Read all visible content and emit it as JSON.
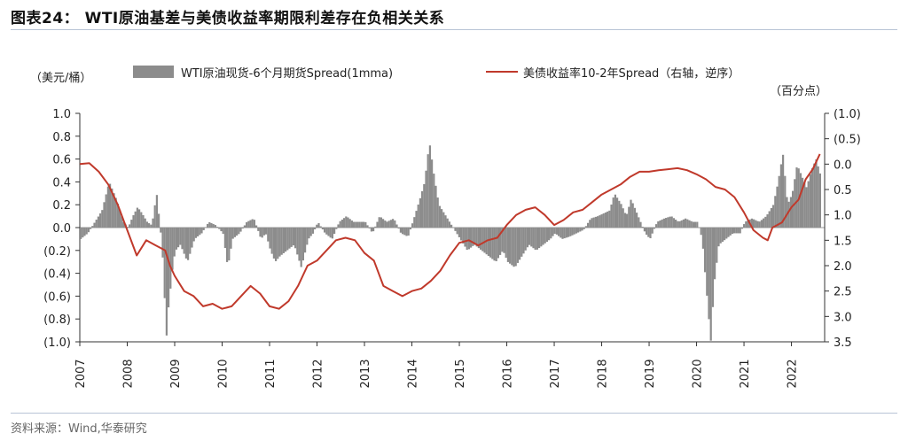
{
  "header": {
    "title": "图表24： WTI原油基差与美债收益率期限利差存在负相关关系"
  },
  "footer": {
    "source": "资料来源：Wind,华泰研究"
  },
  "chart_data": {
    "type": "bar+line",
    "left_unit": "（美元/桶）",
    "right_unit": "（百分点）",
    "left_axis": {
      "min": -1.0,
      "max": 1.0,
      "ticks": [
        1.0,
        0.8,
        0.6,
        0.4,
        0.2,
        0.0,
        -0.2,
        -0.4,
        -0.6,
        -0.8,
        -1.0
      ],
      "tick_labels": [
        "1.0",
        "0.8",
        "0.6",
        "0.4",
        "0.2",
        "0.0",
        "(0.2)",
        "(0.4)",
        "(0.6)",
        "(0.8)",
        "(1.0)"
      ]
    },
    "right_axis": {
      "min": -1.0,
      "max": 3.5,
      "reversed": true,
      "ticks": [
        -1.0,
        -0.5,
        0.0,
        0.5,
        1.0,
        1.5,
        2.0,
        2.5,
        3.0,
        3.5
      ],
      "tick_labels": [
        "(1.0)",
        "(0.5)",
        "0.0",
        "0.5",
        "1.0",
        "1.5",
        "2.0",
        "2.5",
        "3.0",
        "3.5"
      ]
    },
    "x_axis": {
      "min": 2007,
      "max": 2022.7,
      "ticks": [
        2007,
        2008,
        2009,
        2010,
        2011,
        2012,
        2013,
        2014,
        2015,
        2016,
        2017,
        2018,
        2019,
        2020,
        2021,
        2022
      ],
      "tick_labels": [
        "2007",
        "2008",
        "2009",
        "2010",
        "2011",
        "2012",
        "2013",
        "2014",
        "2015",
        "2016",
        "2017",
        "2018",
        "2019",
        "2020",
        "2021",
        "2022"
      ]
    },
    "colors": {
      "bar": "#8c8c8c",
      "line": "#c0392b"
    },
    "series": [
      {
        "name": "WTI原油现货-6个月期货Spread(1mma)",
        "kind": "bar",
        "axis": "left",
        "points": [
          [
            2007.0,
            -0.1
          ],
          [
            2007.15,
            -0.05
          ],
          [
            2007.3,
            0.05
          ],
          [
            2007.45,
            0.15
          ],
          [
            2007.6,
            0.4
          ],
          [
            2007.75,
            0.25
          ],
          [
            2007.9,
            0.05
          ],
          [
            2008.0,
            0.0
          ],
          [
            2008.1,
            0.1
          ],
          [
            2008.2,
            0.18
          ],
          [
            2008.3,
            0.12
          ],
          [
            2008.4,
            0.05
          ],
          [
            2008.5,
            0.02
          ],
          [
            2008.6,
            0.3
          ],
          [
            2008.7,
            -0.1
          ],
          [
            2008.75,
            -0.4
          ],
          [
            2008.8,
            -1.0
          ],
          [
            2008.85,
            -0.7
          ],
          [
            2008.95,
            -0.3
          ],
          [
            2009.0,
            -0.2
          ],
          [
            2009.1,
            -0.15
          ],
          [
            2009.25,
            -0.3
          ],
          [
            2009.4,
            -0.1
          ],
          [
            2009.55,
            -0.05
          ],
          [
            2009.7,
            0.05
          ],
          [
            2009.85,
            0.02
          ],
          [
            2010.0,
            -0.05
          ],
          [
            2010.1,
            -0.35
          ],
          [
            2010.2,
            -0.1
          ],
          [
            2010.35,
            -0.05
          ],
          [
            2010.5,
            0.05
          ],
          [
            2010.65,
            0.08
          ],
          [
            2010.8,
            -0.1
          ],
          [
            2010.9,
            -0.05
          ],
          [
            2011.0,
            -0.2
          ],
          [
            2011.1,
            -0.3
          ],
          [
            2011.2,
            -0.25
          ],
          [
            2011.35,
            -0.2
          ],
          [
            2011.5,
            -0.15
          ],
          [
            2011.65,
            -0.35
          ],
          [
            2011.8,
            -0.1
          ],
          [
            2011.9,
            -0.05
          ],
          [
            2012.0,
            0.05
          ],
          [
            2012.15,
            -0.05
          ],
          [
            2012.3,
            -0.1
          ],
          [
            2012.45,
            0.05
          ],
          [
            2012.6,
            0.1
          ],
          [
            2012.75,
            0.05
          ],
          [
            2012.9,
            0.05
          ],
          [
            2013.0,
            0.05
          ],
          [
            2013.15,
            -0.05
          ],
          [
            2013.3,
            0.1
          ],
          [
            2013.45,
            0.05
          ],
          [
            2013.6,
            0.08
          ],
          [
            2013.75,
            -0.05
          ],
          [
            2013.9,
            -0.08
          ],
          [
            2014.0,
            0.05
          ],
          [
            2014.15,
            0.25
          ],
          [
            2014.25,
            0.4
          ],
          [
            2014.35,
            0.75
          ],
          [
            2014.45,
            0.45
          ],
          [
            2014.55,
            0.2
          ],
          [
            2014.7,
            0.1
          ],
          [
            2014.85,
            0.0
          ],
          [
            2015.0,
            -0.1
          ],
          [
            2015.15,
            -0.2
          ],
          [
            2015.3,
            -0.15
          ],
          [
            2015.45,
            -0.2
          ],
          [
            2015.6,
            -0.25
          ],
          [
            2015.75,
            -0.3
          ],
          [
            2015.9,
            -0.2
          ],
          [
            2016.0,
            -0.3
          ],
          [
            2016.15,
            -0.35
          ],
          [
            2016.3,
            -0.25
          ],
          [
            2016.45,
            -0.15
          ],
          [
            2016.6,
            -0.2
          ],
          [
            2016.75,
            -0.15
          ],
          [
            2016.9,
            -0.1
          ],
          [
            2017.0,
            -0.05
          ],
          [
            2017.15,
            -0.1
          ],
          [
            2017.3,
            -0.08
          ],
          [
            2017.45,
            -0.05
          ],
          [
            2017.6,
            -0.02
          ],
          [
            2017.75,
            0.08
          ],
          [
            2017.9,
            0.1
          ],
          [
            2018.0,
            0.12
          ],
          [
            2018.15,
            0.15
          ],
          [
            2018.25,
            0.3
          ],
          [
            2018.4,
            0.2
          ],
          [
            2018.5,
            0.1
          ],
          [
            2018.6,
            0.25
          ],
          [
            2018.75,
            0.1
          ],
          [
            2018.9,
            -0.05
          ],
          [
            2019.0,
            -0.1
          ],
          [
            2019.15,
            0.05
          ],
          [
            2019.3,
            0.08
          ],
          [
            2019.45,
            0.1
          ],
          [
            2019.6,
            0.05
          ],
          [
            2019.75,
            0.08
          ],
          [
            2019.9,
            0.05
          ],
          [
            2020.0,
            0.05
          ],
          [
            2020.1,
            -0.1
          ],
          [
            2020.2,
            -0.6
          ],
          [
            2020.28,
            -1.0
          ],
          [
            2020.35,
            -0.5
          ],
          [
            2020.45,
            -0.15
          ],
          [
            2020.6,
            -0.1
          ],
          [
            2020.75,
            -0.05
          ],
          [
            2020.9,
            -0.05
          ],
          [
            2021.0,
            0.05
          ],
          [
            2021.15,
            0.08
          ],
          [
            2021.3,
            0.05
          ],
          [
            2021.45,
            0.1
          ],
          [
            2021.6,
            0.2
          ],
          [
            2021.7,
            0.4
          ],
          [
            2021.8,
            0.65
          ],
          [
            2021.9,
            0.2
          ],
          [
            2022.0,
            0.3
          ],
          [
            2022.1,
            0.55
          ],
          [
            2022.2,
            0.45
          ],
          [
            2022.3,
            0.35
          ],
          [
            2022.4,
            0.5
          ],
          [
            2022.5,
            0.6
          ],
          [
            2022.6,
            0.45
          ]
        ]
      },
      {
        "name": "美债收益率10-2年Spread（右轴，逆序）",
        "kind": "line",
        "axis": "right",
        "points": [
          [
            2007.0,
            0.0
          ],
          [
            2007.2,
            -0.02
          ],
          [
            2007.4,
            0.15
          ],
          [
            2007.6,
            0.4
          ],
          [
            2007.8,
            0.8
          ],
          [
            2008.0,
            1.3
          ],
          [
            2008.2,
            1.8
          ],
          [
            2008.4,
            1.5
          ],
          [
            2008.6,
            1.6
          ],
          [
            2008.8,
            1.7
          ],
          [
            2008.9,
            2.0
          ],
          [
            2009.0,
            2.2
          ],
          [
            2009.2,
            2.5
          ],
          [
            2009.4,
            2.6
          ],
          [
            2009.6,
            2.8
          ],
          [
            2009.8,
            2.75
          ],
          [
            2010.0,
            2.85
          ],
          [
            2010.2,
            2.8
          ],
          [
            2010.4,
            2.6
          ],
          [
            2010.6,
            2.4
          ],
          [
            2010.8,
            2.55
          ],
          [
            2011.0,
            2.8
          ],
          [
            2011.2,
            2.85
          ],
          [
            2011.4,
            2.7
          ],
          [
            2011.6,
            2.4
          ],
          [
            2011.8,
            2.0
          ],
          [
            2012.0,
            1.9
          ],
          [
            2012.2,
            1.7
          ],
          [
            2012.4,
            1.5
          ],
          [
            2012.6,
            1.45
          ],
          [
            2012.8,
            1.5
          ],
          [
            2013.0,
            1.75
          ],
          [
            2013.2,
            1.9
          ],
          [
            2013.4,
            2.4
          ],
          [
            2013.6,
            2.5
          ],
          [
            2013.8,
            2.6
          ],
          [
            2014.0,
            2.5
          ],
          [
            2014.2,
            2.45
          ],
          [
            2014.4,
            2.3
          ],
          [
            2014.6,
            2.1
          ],
          [
            2014.8,
            1.8
          ],
          [
            2015.0,
            1.55
          ],
          [
            2015.2,
            1.5
          ],
          [
            2015.4,
            1.6
          ],
          [
            2015.6,
            1.5
          ],
          [
            2015.8,
            1.45
          ],
          [
            2016.0,
            1.2
          ],
          [
            2016.2,
            1.0
          ],
          [
            2016.4,
            0.9
          ],
          [
            2016.6,
            0.85
          ],
          [
            2016.8,
            1.0
          ],
          [
            2017.0,
            1.2
          ],
          [
            2017.2,
            1.1
          ],
          [
            2017.4,
            0.95
          ],
          [
            2017.6,
            0.9
          ],
          [
            2017.8,
            0.75
          ],
          [
            2018.0,
            0.6
          ],
          [
            2018.2,
            0.5
          ],
          [
            2018.4,
            0.4
          ],
          [
            2018.6,
            0.25
          ],
          [
            2018.8,
            0.15
          ],
          [
            2019.0,
            0.15
          ],
          [
            2019.2,
            0.12
          ],
          [
            2019.4,
            0.1
          ],
          [
            2019.6,
            0.08
          ],
          [
            2019.8,
            0.12
          ],
          [
            2020.0,
            0.2
          ],
          [
            2020.2,
            0.3
          ],
          [
            2020.4,
            0.45
          ],
          [
            2020.6,
            0.5
          ],
          [
            2020.8,
            0.65
          ],
          [
            2021.0,
            0.95
          ],
          [
            2021.2,
            1.3
          ],
          [
            2021.4,
            1.45
          ],
          [
            2021.5,
            1.5
          ],
          [
            2021.6,
            1.25
          ],
          [
            2021.8,
            1.15
          ],
          [
            2022.0,
            0.85
          ],
          [
            2022.15,
            0.7
          ],
          [
            2022.3,
            0.3
          ],
          [
            2022.45,
            0.1
          ],
          [
            2022.6,
            -0.2
          ]
        ]
      }
    ]
  }
}
